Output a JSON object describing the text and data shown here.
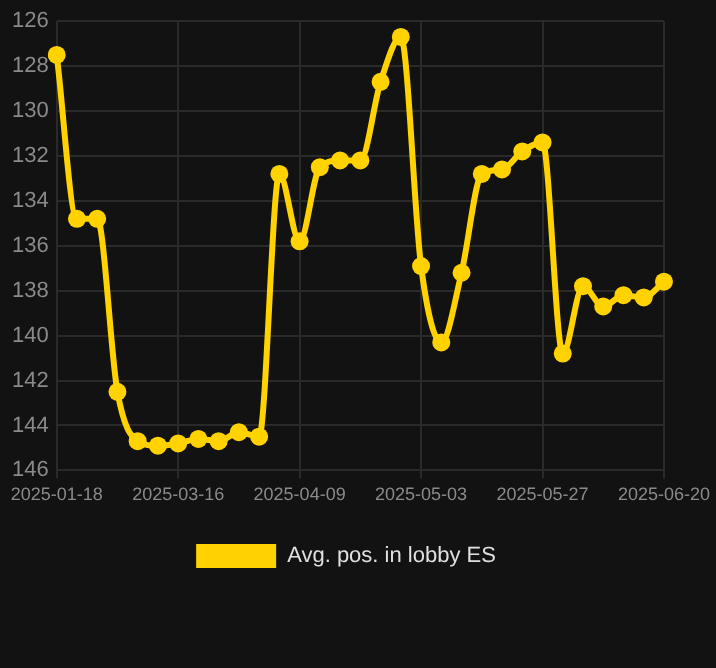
{
  "chart_data": {
    "type": "line",
    "categories": [
      "2025-01-18",
      null,
      null,
      null,
      null,
      null,
      "2025-03-16",
      null,
      null,
      null,
      null,
      null,
      "2025-04-09",
      null,
      null,
      null,
      null,
      null,
      "2025-05-03",
      null,
      null,
      null,
      null,
      null,
      "2025-05-27",
      null,
      null,
      null,
      null,
      null,
      "2025-06-20"
    ],
    "series": [
      {
        "name": "Avg. pos. in lobby ES",
        "color": "#ffd200",
        "values": [
          127.5,
          134.8,
          134.8,
          142.5,
          144.7,
          144.9,
          144.8,
          144.6,
          144.7,
          144.3,
          144.5,
          132.8,
          135.8,
          132.5,
          132.2,
          132.2,
          128.7,
          126.7,
          136.9,
          140.3,
          137.2,
          132.8,
          132.6,
          131.8,
          131.4,
          140.8,
          137.8,
          138.7,
          138.2,
          138.3,
          137.6
        ]
      }
    ],
    "ylim": [
      146,
      126
    ],
    "yticks": [
      126,
      128,
      130,
      132,
      134,
      136,
      138,
      140,
      142,
      144,
      146
    ],
    "grid": true,
    "legend": "bottom",
    "marker": "circle",
    "line_style": "solid"
  }
}
